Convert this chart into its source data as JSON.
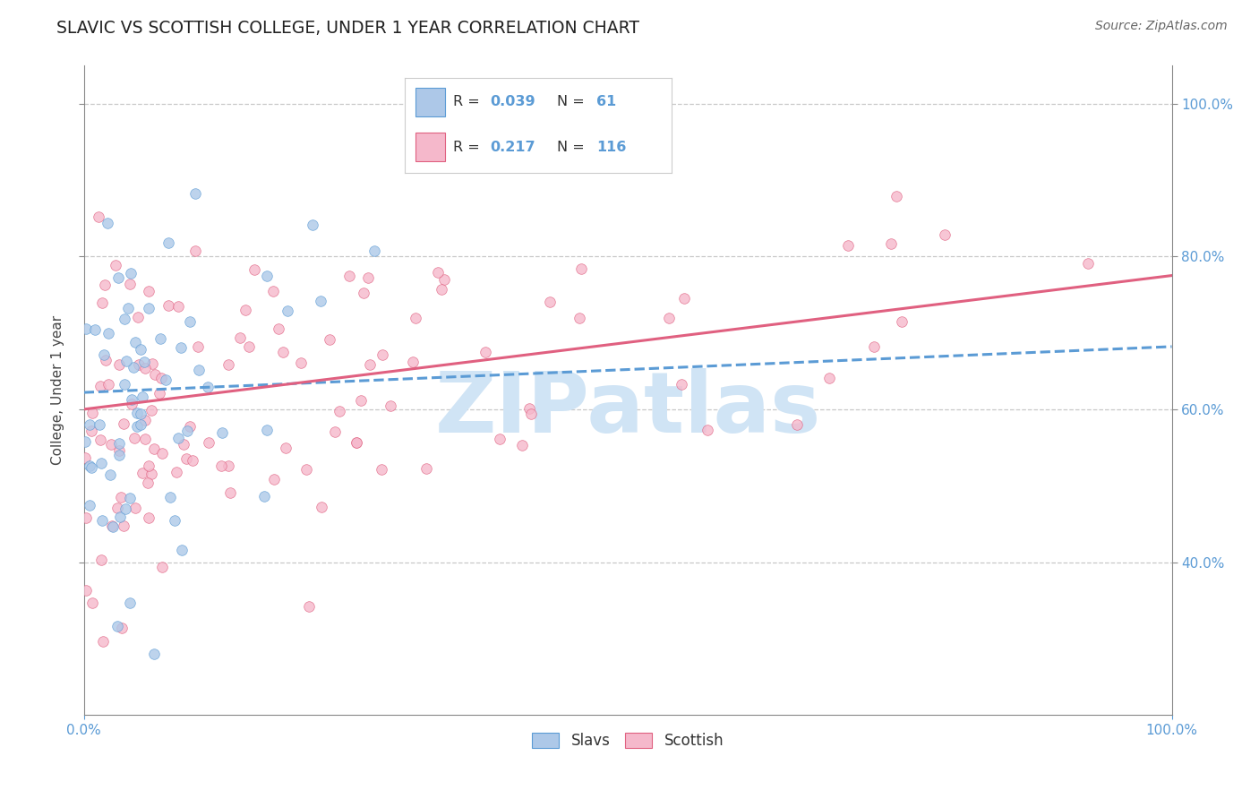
{
  "title": "SLAVIC VS SCOTTISH COLLEGE, UNDER 1 YEAR CORRELATION CHART",
  "source_text": "Source: ZipAtlas.com",
  "ylabel": "College, Under 1 year",
  "xlim": [
    0.0,
    1.0
  ],
  "ylim": [
    0.2,
    1.05
  ],
  "yticks": [
    0.4,
    0.6,
    0.8,
    1.0
  ],
  "ytick_labels": [
    "40.0%",
    "60.0%",
    "80.0%",
    "100.0%"
  ],
  "xticks": [
    0.0,
    1.0
  ],
  "xtick_labels": [
    "0.0%",
    "100.0%"
  ],
  "slavs_color": "#adc8e8",
  "slavs_edge_color": "#5b9bd5",
  "scottish_color": "#f5b8cb",
  "scottish_edge_color": "#e06080",
  "slavs_line_color": "#5b9bd5",
  "scottish_line_color": "#e06080",
  "grid_color": "#c8c8c8",
  "tick_color": "#5b9bd5",
  "background_color": "#ffffff",
  "watermark": "ZIPatlas",
  "watermark_color": "#d0e4f5",
  "slavs_R": 0.039,
  "scottish_R": 0.217,
  "slavs_N": 61,
  "scottish_N": 116,
  "legend_R1": "0.039",
  "legend_R2": "0.217",
  "legend_N1": "61",
  "legend_N2": "116"
}
